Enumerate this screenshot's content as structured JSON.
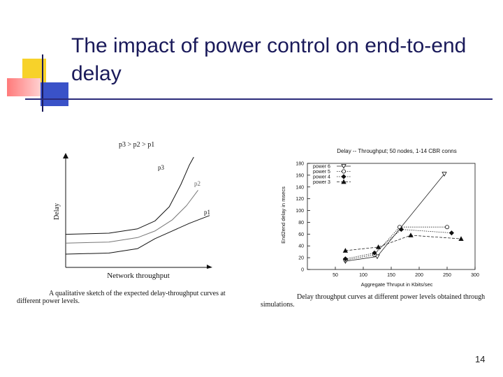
{
  "slide": {
    "title": "The impact of power control on end-to-end delay",
    "page_number": "14"
  },
  "figure_left": {
    "header": "p3 > p2 > p1",
    "caption": "A qualitative sketch of the expected delay-throughput curves at different power levels."
  },
  "figure_right": {
    "caption": "Delay throughput curves at different power levels obtained through simulations."
  },
  "chart_data": [
    {
      "type": "line",
      "title": "",
      "xlabel": "Network throughput",
      "ylabel": "Delay",
      "curve_labels": [
        "p3",
        "p2",
        "p1"
      ],
      "series": [
        {
          "name": "p3",
          "x": [
            0,
            0.3,
            0.5,
            0.62,
            0.72,
            0.8,
            0.86,
            0.89
          ],
          "y": [
            0.3,
            0.31,
            0.35,
            0.42,
            0.55,
            0.75,
            0.93,
            1.0
          ]
        },
        {
          "name": "p2",
          "x": [
            0,
            0.3,
            0.5,
            0.62,
            0.74,
            0.84,
            0.92
          ],
          "y": [
            0.22,
            0.23,
            0.27,
            0.33,
            0.43,
            0.56,
            0.7
          ]
        },
        {
          "name": "p1",
          "x": [
            0,
            0.3,
            0.5,
            0.62,
            0.74,
            0.86,
            1.0
          ],
          "y": [
            0.12,
            0.13,
            0.17,
            0.26,
            0.33,
            0.4,
            0.47
          ]
        }
      ]
    },
    {
      "type": "line",
      "title": "Delay -- Throughput; 50 nodes, 1-14 CBR conns",
      "xlabel": "Aggregate Thruput in Kbits/sec",
      "ylabel": "End2end delay in msecs",
      "xlim": [
        0,
        300
      ],
      "ylim": [
        0,
        180
      ],
      "xticks": [
        50,
        100,
        150,
        200,
        250,
        300
      ],
      "yticks": [
        0,
        20,
        40,
        60,
        80,
        100,
        120,
        140,
        160,
        180
      ],
      "legend_position": "top-left",
      "series": [
        {
          "name": "power 6",
          "marker": "triangle-down",
          "dash": "solid",
          "x": [
            68,
            125,
            245
          ],
          "y": [
            14,
            22,
            162
          ]
        },
        {
          "name": "power 5",
          "marker": "circle",
          "dash": "dotted",
          "x": [
            68,
            120,
            165,
            250
          ],
          "y": [
            16,
            25,
            72,
            72
          ]
        },
        {
          "name": "power 4",
          "marker": "diamond",
          "dash": "dotted",
          "x": [
            68,
            120,
            168,
            258
          ],
          "y": [
            18,
            28,
            68,
            62
          ]
        },
        {
          "name": "power 3",
          "marker": "triangle-up",
          "dash": "dashed",
          "x": [
            68,
            127,
            185,
            275
          ],
          "y": [
            32,
            38,
            58,
            52
          ]
        }
      ]
    }
  ]
}
